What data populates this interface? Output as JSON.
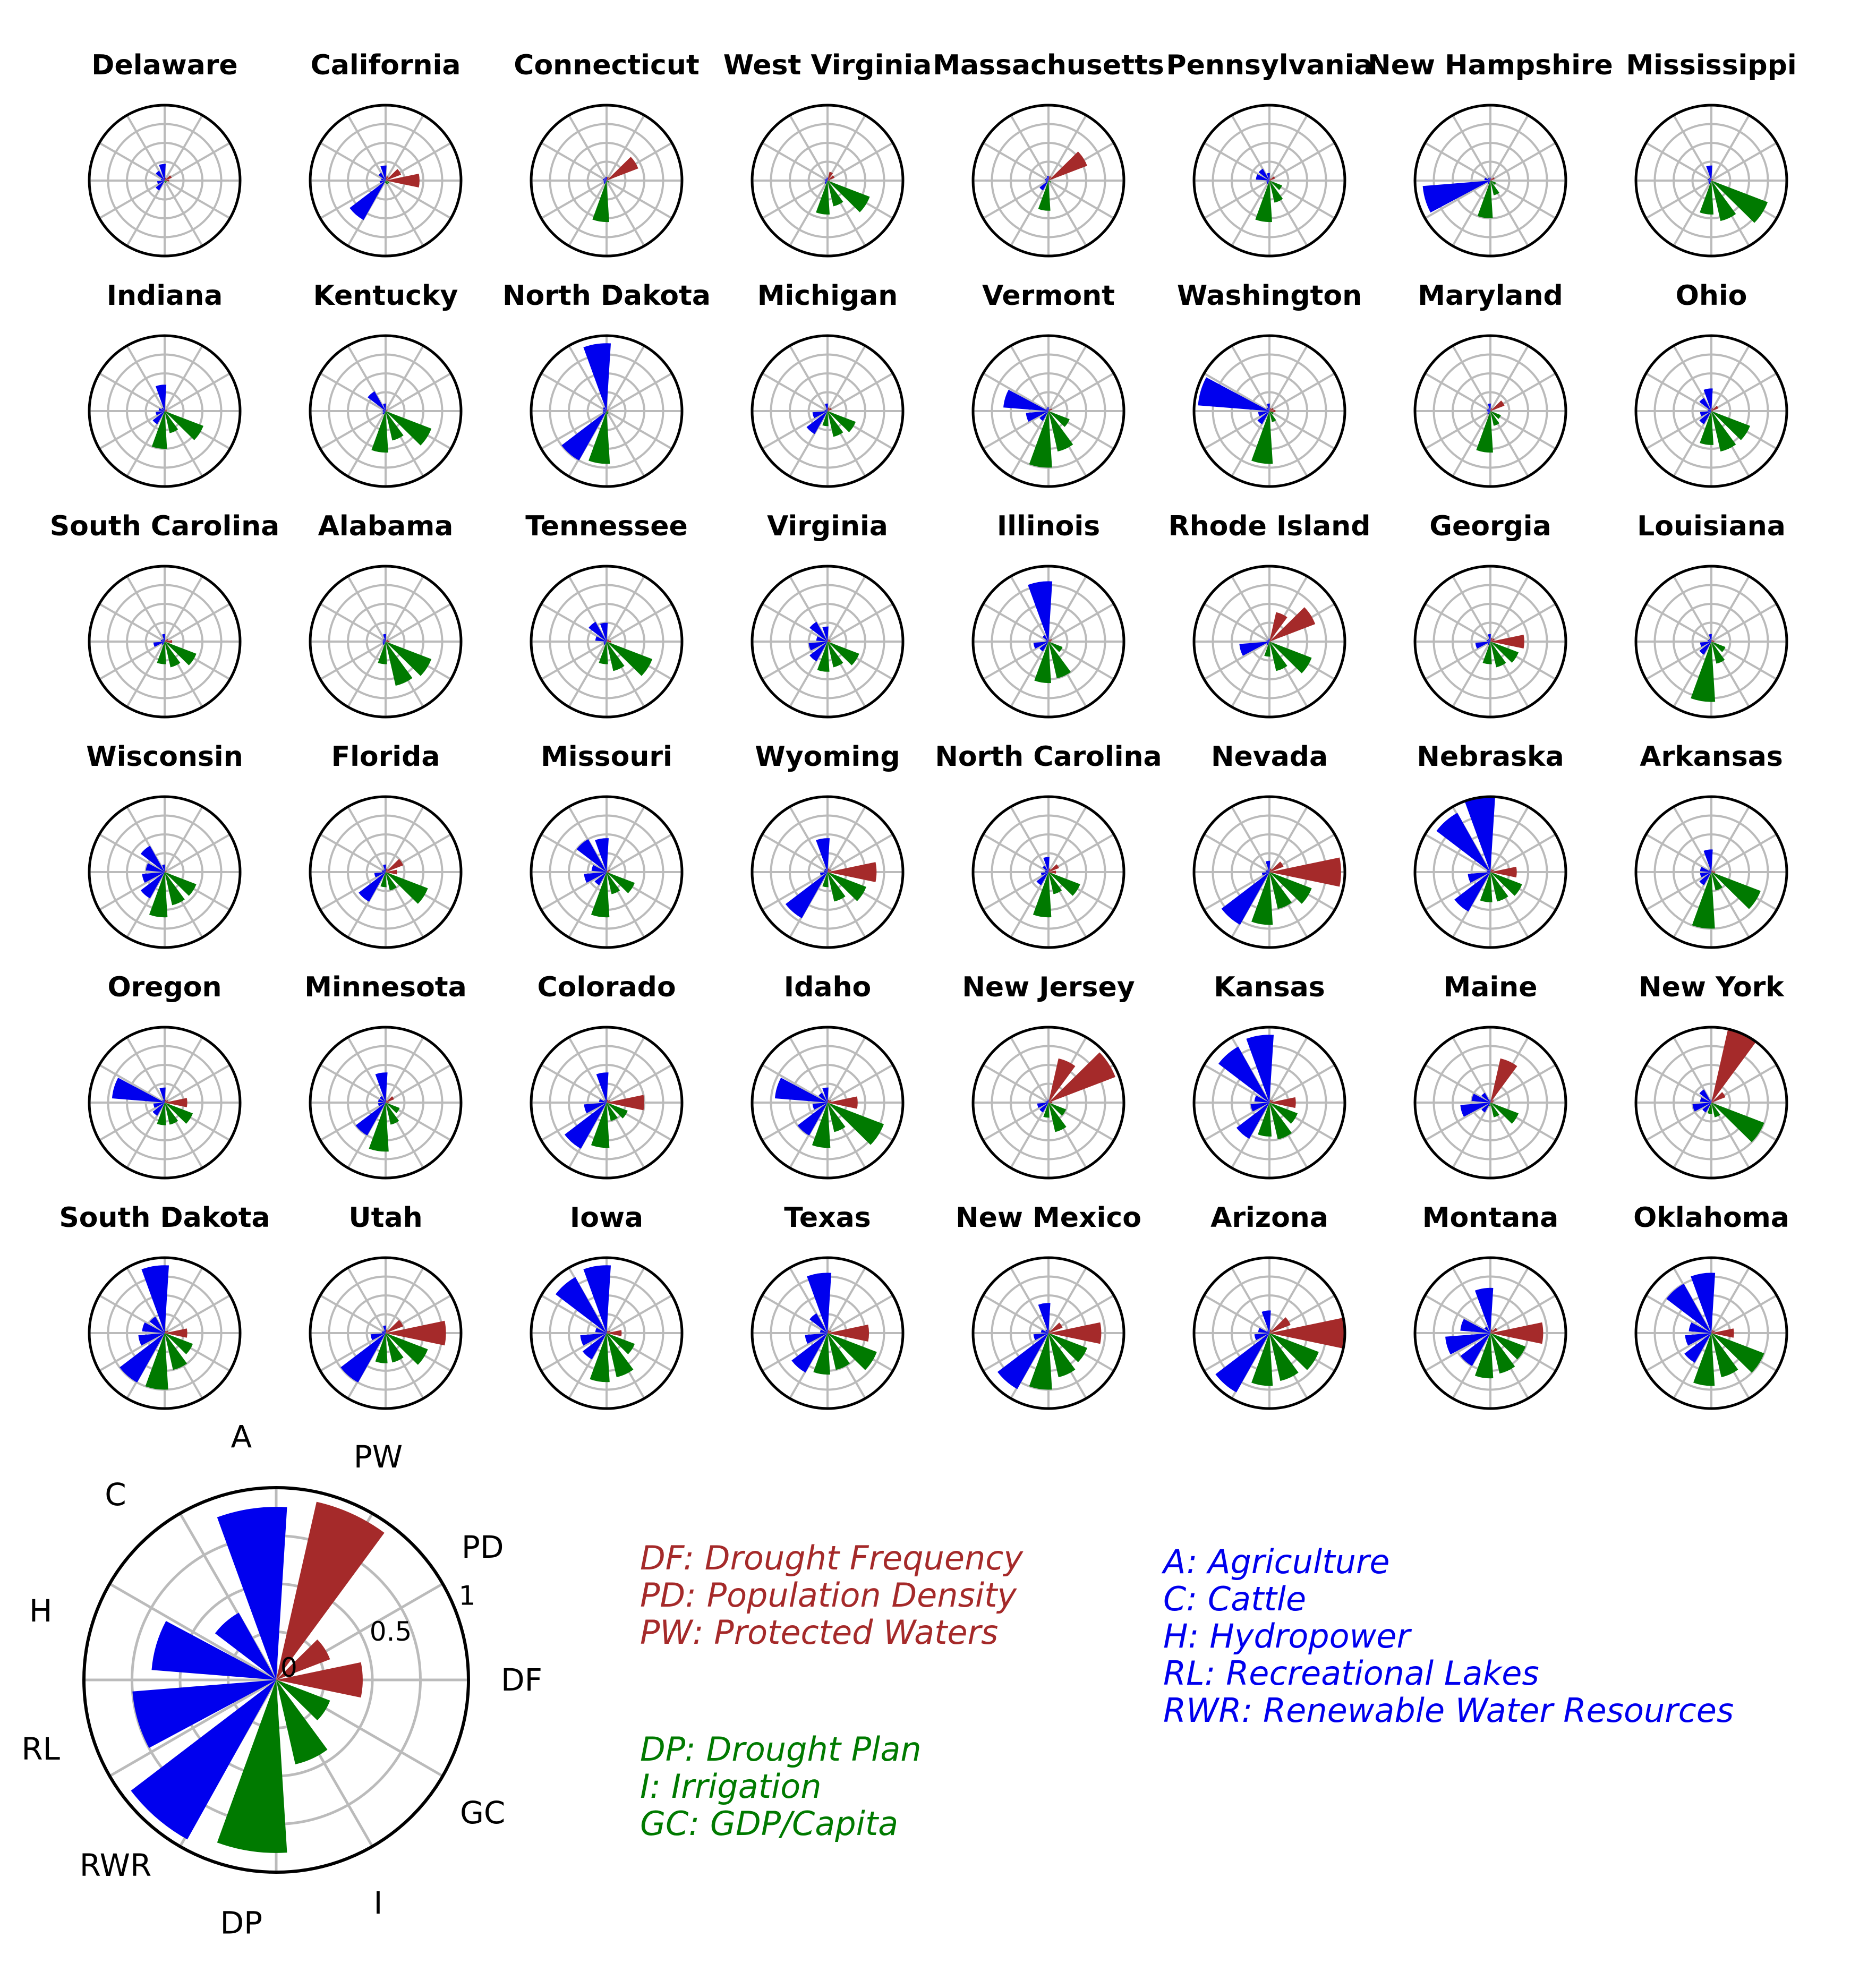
{
  "chart_data": {
    "type": "polar-bar-grid",
    "categories": [
      "DF",
      "PD",
      "PW",
      "A",
      "C",
      "H",
      "RL",
      "RWR",
      "DP",
      "I",
      "GC"
    ],
    "category_groups": {
      "DF": "red",
      "PD": "red",
      "PW": "red",
      "A": "blue",
      "C": "blue",
      "H": "blue",
      "RL": "blue",
      "RWR": "blue",
      "DP": "green",
      "I": "green",
      "GC": "green"
    },
    "colors": {
      "red": "#a52a2a",
      "blue": "#0000ee",
      "green": "#007a00",
      "grid": "#bbbbbb",
      "frame": "#000000"
    },
    "rlim": [
      0,
      1
    ],
    "radial_ticks": [
      "0",
      "0.5",
      "1"
    ],
    "states": [
      {
        "name": "Delaware",
        "values": [
          0.06,
          0.1,
          0.04,
          0.22,
          0.15,
          0.05,
          0.1,
          0.15,
          0.02,
          0.03,
          0.03
        ]
      },
      {
        "name": "California",
        "values": [
          0.45,
          0.22,
          0.06,
          0.2,
          0.12,
          0.06,
          0.08,
          0.6,
          0.03,
          0.05,
          0.05
        ]
      },
      {
        "name": "Connecticut",
        "values": [
          0.02,
          0.45,
          0.05,
          0.05,
          0.04,
          0.05,
          0.04,
          0.05,
          0.55,
          0.02,
          0.04
        ]
      },
      {
        "name": "West Virginia",
        "values": [
          0.03,
          0.1,
          0.12,
          0.04,
          0.03,
          0.04,
          0.03,
          0.05,
          0.45,
          0.35,
          0.6
        ]
      },
      {
        "name": "Massachusetts",
        "values": [
          0.02,
          0.55,
          0.06,
          0.06,
          0.04,
          0.05,
          0.04,
          0.15,
          0.4,
          0.02,
          0.04
        ]
      },
      {
        "name": "Pennsylvania",
        "values": [
          0.02,
          0.08,
          0.03,
          0.1,
          0.18,
          0.18,
          0.04,
          0.05,
          0.55,
          0.3,
          0.18
        ]
      },
      {
        "name": "New Hampshire",
        "values": [
          0.02,
          0.06,
          0.03,
          0.04,
          0.04,
          0.08,
          0.9,
          0.05,
          0.5,
          0.2,
          0.08
        ]
      },
      {
        "name": "Mississippi",
        "values": [
          0.02,
          0.03,
          0.02,
          0.2,
          0.04,
          0.05,
          0.04,
          0.05,
          0.45,
          0.55,
          0.8
        ]
      },
      {
        "name": "Indiana",
        "values": [
          0.03,
          0.03,
          0.02,
          0.35,
          0.05,
          0.08,
          0.12,
          0.2,
          0.5,
          0.3,
          0.55
        ]
      },
      {
        "name": "Kentucky",
        "values": [
          0.02,
          0.03,
          0.02,
          0.1,
          0.3,
          0.04,
          0.04,
          0.05,
          0.55,
          0.4,
          0.65
        ]
      },
      {
        "name": "North Dakota",
        "values": [
          0.02,
          0.03,
          0.02,
          0.9,
          0.06,
          0.05,
          0.05,
          0.75,
          0.7,
          0.04,
          0.03
        ]
      },
      {
        "name": "Michigan",
        "values": [
          0.02,
          0.06,
          0.05,
          0.1,
          0.03,
          0.04,
          0.2,
          0.35,
          0.2,
          0.35,
          0.4
        ]
      },
      {
        "name": "Vermont",
        "values": [
          0.02,
          0.05,
          0.03,
          0.05,
          0.04,
          0.6,
          0.3,
          0.15,
          0.75,
          0.55,
          0.3
        ]
      },
      {
        "name": "Washington",
        "values": [
          0.08,
          0.06,
          0.04,
          0.1,
          0.05,
          0.95,
          0.15,
          0.2,
          0.7,
          0.15,
          0.06
        ]
      },
      {
        "name": "Maryland",
        "values": [
          0.02,
          0.2,
          0.04,
          0.1,
          0.04,
          0.05,
          0.04,
          0.05,
          0.55,
          0.2,
          0.15
        ]
      },
      {
        "name": "Ohio",
        "values": [
          0.02,
          0.1,
          0.04,
          0.3,
          0.2,
          0.05,
          0.15,
          0.2,
          0.45,
          0.55,
          0.55
        ]
      },
      {
        "name": "South Carolina",
        "values": [
          0.1,
          0.05,
          0.02,
          0.1,
          0.04,
          0.05,
          0.15,
          0.05,
          0.3,
          0.35,
          0.45
        ]
      },
      {
        "name": "Alabama",
        "values": [
          0.05,
          0.04,
          0.02,
          0.1,
          0.04,
          0.04,
          0.04,
          0.05,
          0.3,
          0.6,
          0.65
        ]
      },
      {
        "name": "Tennessee",
        "values": [
          0.06,
          0.04,
          0.03,
          0.25,
          0.3,
          0.15,
          0.04,
          0.05,
          0.3,
          0.4,
          0.65
        ]
      },
      {
        "name": "Virginia",
        "values": [
          0.04,
          0.04,
          0.03,
          0.2,
          0.3,
          0.15,
          0.25,
          0.3,
          0.4,
          0.35,
          0.45
        ]
      },
      {
        "name": "Illinois",
        "values": [
          0.03,
          0.05,
          0.03,
          0.8,
          0.1,
          0.04,
          0.2,
          0.15,
          0.55,
          0.5,
          0.2
        ]
      },
      {
        "name": "Rhode Island",
        "values": [
          0.02,
          0.65,
          0.4,
          0.04,
          0.03,
          0.04,
          0.4,
          0.05,
          0.2,
          0.4,
          0.6
        ]
      },
      {
        "name": "Georgia",
        "values": [
          0.45,
          0.06,
          0.05,
          0.1,
          0.04,
          0.05,
          0.2,
          0.05,
          0.3,
          0.35,
          0.4
        ]
      },
      {
        "name": "Louisiana",
        "values": [
          0.04,
          0.03,
          0.02,
          0.1,
          0.04,
          0.05,
          0.15,
          0.2,
          0.8,
          0.3,
          0.2
        ]
      },
      {
        "name": "Wisconsin",
        "values": [
          0.02,
          0.03,
          0.02,
          0.1,
          0.4,
          0.25,
          0.3,
          0.4,
          0.6,
          0.45,
          0.45
        ]
      },
      {
        "name": "Florida",
        "values": [
          0.15,
          0.25,
          0.05,
          0.1,
          0.04,
          0.05,
          0.15,
          0.45,
          0.2,
          0.25,
          0.6
        ]
      },
      {
        "name": "Missouri",
        "values": [
          0.03,
          0.05,
          0.02,
          0.45,
          0.5,
          0.2,
          0.3,
          0.2,
          0.6,
          0.3,
          0.4
        ]
      },
      {
        "name": "Wyoming",
        "values": [
          0.65,
          0.05,
          0.05,
          0.45,
          0.05,
          0.05,
          0.1,
          0.7,
          0.2,
          0.4,
          0.55
        ]
      },
      {
        "name": "North Carolina",
        "values": [
          0.1,
          0.15,
          0.05,
          0.2,
          0.1,
          0.05,
          0.1,
          0.2,
          0.6,
          0.3,
          0.45
        ]
      },
      {
        "name": "Nevada",
        "values": [
          0.95,
          0.2,
          0.05,
          0.15,
          0.04,
          0.05,
          0.1,
          0.8,
          0.7,
          0.5,
          0.6
        ]
      },
      {
        "name": "Nebraska",
        "values": [
          0.35,
          0.05,
          0.04,
          1.0,
          0.9,
          0.05,
          0.3,
          0.6,
          0.4,
          0.4,
          0.45
        ]
      },
      {
        "name": "Arkansas",
        "values": [
          0.05,
          0.03,
          0.02,
          0.3,
          0.04,
          0.15,
          0.15,
          0.2,
          0.75,
          0.25,
          0.7
        ]
      },
      {
        "name": "Oregon",
        "values": [
          0.3,
          0.05,
          0.04,
          0.2,
          0.04,
          0.7,
          0.15,
          0.2,
          0.3,
          0.3,
          0.4
        ]
      },
      {
        "name": "Minnesota",
        "values": [
          0.04,
          0.12,
          0.03,
          0.4,
          0.1,
          0.1,
          0.1,
          0.5,
          0.65,
          0.3,
          0.2
        ]
      },
      {
        "name": "Colorado",
        "values": [
          0.5,
          0.05,
          0.04,
          0.4,
          0.04,
          0.1,
          0.3,
          0.7,
          0.6,
          0.25,
          0.3
        ]
      },
      {
        "name": "Idaho",
        "values": [
          0.4,
          0.05,
          0.04,
          0.2,
          0.15,
          0.7,
          0.2,
          0.5,
          0.6,
          0.4,
          0.8
        ]
      },
      {
        "name": "New Jersey",
        "values": [
          0.05,
          0.95,
          0.6,
          0.04,
          0.03,
          0.04,
          0.15,
          0.15,
          0.2,
          0.4,
          0.25
        ]
      },
      {
        "name": "Kansas",
        "values": [
          0.35,
          0.05,
          0.04,
          0.9,
          0.85,
          0.2,
          0.25,
          0.55,
          0.45,
          0.5,
          0.4
        ]
      },
      {
        "name": "Maine",
        "values": [
          0.03,
          0.05,
          0.6,
          0.04,
          0.15,
          0.25,
          0.4,
          0.15,
          0.05,
          0.2,
          0.4
        ]
      },
      {
        "name": "New York",
        "values": [
          0.03,
          0.2,
          1.0,
          0.04,
          0.2,
          0.15,
          0.25,
          0.15,
          0.15,
          0.2,
          0.75
        ]
      },
      {
        "name": "South Dakota",
        "values": [
          0.3,
          0.05,
          0.03,
          0.9,
          0.25,
          0.3,
          0.35,
          0.75,
          0.75,
          0.5,
          0.4
        ]
      },
      {
        "name": "Utah",
        "values": [
          0.8,
          0.25,
          0.05,
          0.1,
          0.04,
          0.05,
          0.2,
          0.75,
          0.4,
          0.4,
          0.6
        ]
      },
      {
        "name": "Iowa",
        "values": [
          0.2,
          0.05,
          0.03,
          0.9,
          0.85,
          0.15,
          0.35,
          0.4,
          0.65,
          0.6,
          0.4
        ]
      },
      {
        "name": "Texas",
        "values": [
          0.55,
          0.05,
          0.04,
          0.8,
          0.3,
          0.1,
          0.3,
          0.6,
          0.55,
          0.5,
          0.7
        ]
      },
      {
        "name": "New Mexico",
        "values": [
          0.7,
          0.2,
          0.04,
          0.4,
          0.05,
          0.1,
          0.2,
          0.85,
          0.75,
          0.6,
          0.55
        ]
      },
      {
        "name": "Arizona",
        "values": [
          1.0,
          0.3,
          0.05,
          0.3,
          0.04,
          0.15,
          0.2,
          0.9,
          0.7,
          0.65,
          0.7
        ]
      },
      {
        "name": "Montana",
        "values": [
          0.7,
          0.1,
          0.05,
          0.6,
          0.1,
          0.4,
          0.6,
          0.5,
          0.6,
          0.55,
          0.5
        ]
      },
      {
        "name": "Oklahoma",
        "values": [
          0.3,
          0.05,
          0.04,
          0.8,
          0.75,
          0.3,
          0.35,
          0.45,
          0.7,
          0.6,
          0.75
        ]
      }
    ],
    "reference": {
      "values": [
        0.45,
        0.3,
        0.95,
        0.9,
        0.4,
        0.65,
        0.75,
        0.95,
        0.9,
        0.45,
        0.3
      ],
      "labels": [
        "DF",
        "PD",
        "PW",
        "A",
        "C",
        "H",
        "RL",
        "RWR",
        "DP",
        "I",
        "GC"
      ]
    },
    "legend": {
      "red": [
        "DF: Drought Frequency",
        "PD: Population Density",
        "PW: Protected Waters"
      ],
      "green": [
        "DP: Drought Plan",
        "I: Irrigation",
        "GC: GDP/Capita"
      ],
      "blue": [
        "A: Agriculture",
        "C: Cattle",
        "H: Hydropower",
        "RL: Recreational Lakes",
        "RWR: Renewable Water Resources"
      ]
    }
  }
}
